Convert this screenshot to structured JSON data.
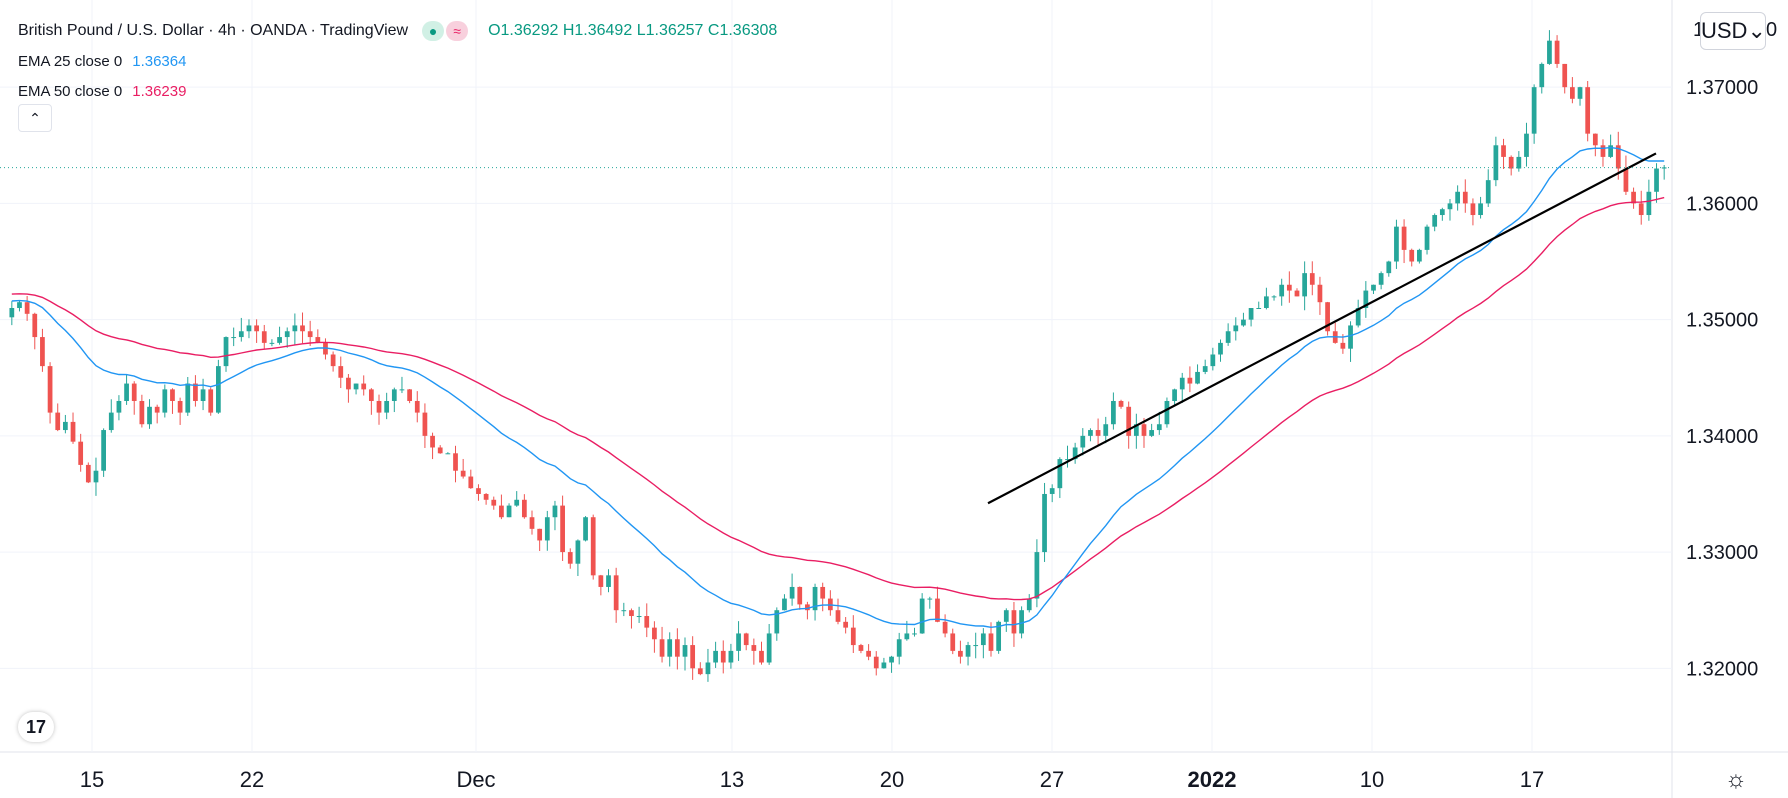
{
  "window": {
    "symbol_title": "British Pound / U.S. Dollar · 4h · OANDA · TradingView",
    "ohlc": {
      "o_label": "O",
      "o": "1.36292",
      "h_label": "H",
      "h": "1.36492",
      "l_label": "L",
      "l": "1.36257",
      "c_label": "C",
      "c": "1.36308"
    },
    "status_dot_icon": "live-dot-icon",
    "replay_icon": "approx-icon",
    "replay_glyph": "≈",
    "dot_glyph": "●",
    "indicators": [
      {
        "name": "EMA 25 close 0",
        "value": "1.36364",
        "color": "#2196f3"
      },
      {
        "name": "EMA 50 close 0",
        "value": "1.36239",
        "color": "#e91e63"
      }
    ],
    "collapse_glyph": "⌃",
    "currency_label": "USD",
    "currency_chevron": "⌄",
    "logo_text": "17",
    "settings_glyph": "☼"
  },
  "colors": {
    "up": "#26a69a",
    "down": "#ef5350",
    "ema25": "#2196f3",
    "ema50": "#e91e63",
    "trendline": "#000000",
    "price_line": "#26a69a",
    "grid": "#f0f3fa",
    "axis_text": "#131722",
    "accent": "#2962ff"
  },
  "chart_data": {
    "type": "candlestick",
    "title": "British Pound / U.S. Dollar · 4h · OANDA",
    "ylim": [
      1.3128,
      1.3775
    ],
    "y_ticks": [
      {
        "value": 1.37,
        "label": "1.37000"
      },
      {
        "value": 1.36,
        "label": "1.36000"
      },
      {
        "value": 1.35,
        "label": "1.35000"
      },
      {
        "value": 1.34,
        "label": "1.34000"
      },
      {
        "value": 1.33,
        "label": "1.33000"
      },
      {
        "value": 1.32,
        "label": "1.32000"
      }
    ],
    "y_top_partial_label": "1",
    "y_top_partial_label_right": "0",
    "x_labels": [
      {
        "t": 10.5,
        "label": "15",
        "bold": false
      },
      {
        "t": 30.5,
        "label": "22",
        "bold": false
      },
      {
        "t": 58.5,
        "label": "Dec",
        "bold": false
      },
      {
        "t": 90.5,
        "label": "13",
        "bold": false
      },
      {
        "t": 110.5,
        "label": "20",
        "bold": false
      },
      {
        "t": 130.5,
        "label": "27",
        "bold": false
      },
      {
        "t": 150.5,
        "label": "2022",
        "bold": true
      },
      {
        "t": 170.5,
        "label": "10",
        "bold": false
      },
      {
        "t": 190.5,
        "label": "17",
        "bold": false
      }
    ],
    "x_range": [
      0,
      207.5
    ],
    "current_price": 1.36308,
    "trendline": {
      "t0": 122.5,
      "p0": 1.3342,
      "t1": 206.0,
      "p1": 1.3643
    },
    "candles_close": [
      1.351,
      1.3515,
      1.3505,
      1.3485,
      1.346,
      1.342,
      1.3405,
      1.3412,
      1.3395,
      1.3375,
      1.336,
      1.337,
      1.3405,
      1.342,
      1.343,
      1.3445,
      1.343,
      1.341,
      1.3425,
      1.342,
      1.344,
      1.343,
      1.342,
      1.3445,
      1.343,
      1.344,
      1.342,
      1.346,
      1.3485,
      1.3485,
      1.349,
      1.3495,
      1.349,
      1.348,
      1.348,
      1.3485,
      1.349,
      1.3495,
      1.349,
      1.3485,
      1.348,
      1.347,
      1.346,
      1.345,
      1.344,
      1.3445,
      1.344,
      1.343,
      1.342,
      1.343,
      1.344,
      1.344,
      1.343,
      1.342,
      1.34,
      1.339,
      1.3385,
      1.3385,
      1.337,
      1.3365,
      1.3355,
      1.335,
      1.3345,
      1.334,
      1.333,
      1.334,
      1.3345,
      1.333,
      1.332,
      1.331,
      1.333,
      1.334,
      1.33,
      1.329,
      1.331,
      1.333,
      1.328,
      1.327,
      1.328,
      1.325,
      1.325,
      1.3245,
      1.3245,
      1.3235,
      1.3225,
      1.321,
      1.3225,
      1.321,
      1.322,
      1.32,
      1.3195,
      1.3205,
      1.3215,
      1.3205,
      1.3215,
      1.323,
      1.322,
      1.3215,
      1.3205,
      1.323,
      1.325,
      1.326,
      1.327,
      1.3255,
      1.325,
      1.327,
      1.326,
      1.325,
      1.324,
      1.3235,
      1.322,
      1.3215,
      1.321,
      1.32,
      1.3205,
      1.321,
      1.3225,
      1.323,
      1.323,
      1.326,
      1.326,
      1.324,
      1.323,
      1.3215,
      1.321,
      1.322,
      1.322,
      1.323,
      1.3215,
      1.324,
      1.325,
      1.323,
      1.325,
      1.326,
      1.33,
      1.335,
      1.3355,
      1.338,
      1.338,
      1.339,
      1.34,
      1.3405,
      1.34,
      1.341,
      1.343,
      1.3425,
      1.34,
      1.341,
      1.34,
      1.3405,
      1.341,
      1.343,
      1.344,
      1.345,
      1.3445,
      1.3455,
      1.346,
      1.347,
      1.348,
      1.349,
      1.3495,
      1.35,
      1.351,
      1.351,
      1.352,
      1.352,
      1.353,
      1.3525,
      1.352,
      1.354,
      1.353,
      1.3515,
      1.349,
      1.348,
      1.3475,
      1.3495,
      1.351,
      1.3525,
      1.353,
      1.354,
      1.355,
      1.358,
      1.356,
      1.355,
      1.356,
      1.358,
      1.359,
      1.3595,
      1.36,
      1.361,
      1.36,
      1.359,
      1.36,
      1.362,
      1.365,
      1.364,
      1.363,
      1.364,
      1.366,
      1.37,
      1.372,
      1.374,
      1.372,
      1.37,
      1.369,
      1.37,
      1.366,
      1.365,
      1.364,
      1.365,
      1.363,
      1.361,
      1.36,
      1.359,
      1.361,
      1.363,
      1.3631
    ]
  }
}
